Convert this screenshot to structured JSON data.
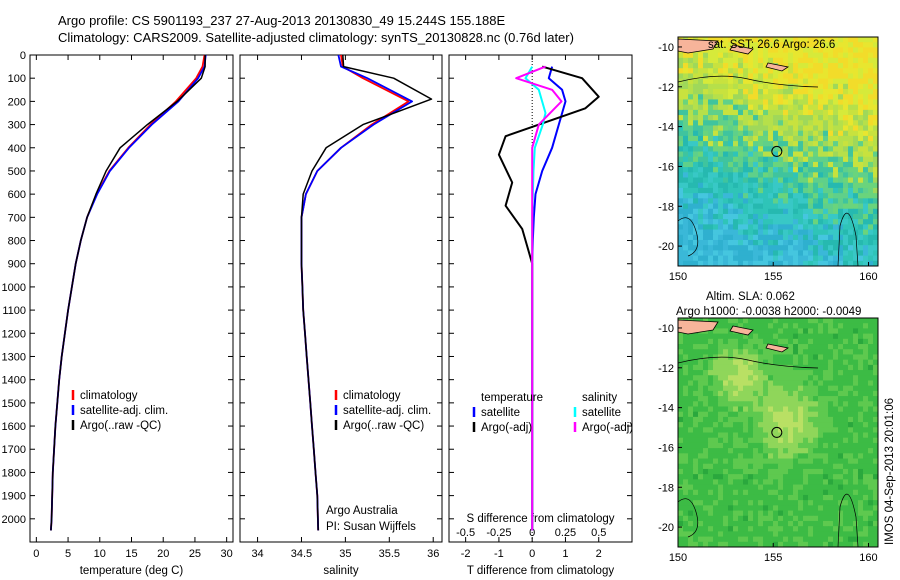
{
  "header": {
    "line1": "Argo profile: CS 5901193_237 27-Aug-2013 20130830_49 15.244S 155.188E",
    "line2": "Climatology: CARS2009. Satellite-adjusted climatology: synTS_20130828.nc (0.76d later)"
  },
  "credit": {
    "org": "Argo Australia",
    "pi": "PI: Susan Wijffels",
    "stamp": "IMOS 04-Sep-2013 20:01:06"
  },
  "map_titles": {
    "sst": "sat. SST: 26.6 Argo: 26.6",
    "sla1": "Altim. SLA: 0.062",
    "sla2": "Argo h1000: -0.0038 h2000: -0.0049"
  },
  "colors": {
    "climatology": "#ff0000",
    "satellite": "#0000ff",
    "argo": "#000000",
    "sal_satellite": "#00ffff",
    "sal_argo": "#ff00ff",
    "land": "#f7b49a"
  },
  "chart_data": [
    {
      "type": "line",
      "panel": "temperature",
      "xlabel": "temperature (deg C)",
      "ylabel": "",
      "xlim": [
        -1,
        31
      ],
      "ylim": [
        2100,
        0
      ],
      "xticks": [
        "0",
        "5",
        "10",
        "15",
        "20",
        "25",
        "30"
      ],
      "yticks": [
        "0",
        "100",
        "200",
        "300",
        "400",
        "500",
        "600",
        "700",
        "800",
        "900",
        "1000",
        "1100",
        "1200",
        "1300",
        "1400",
        "1500",
        "1600",
        "1700",
        "1800",
        "1900",
        "2000"
      ],
      "legend": [
        "climatology",
        "satellite-adj. clim.",
        "Argo(..raw -QC)"
      ],
      "series": [
        {
          "name": "climatology",
          "x": [
            26.5,
            26.2,
            25.2,
            22.0,
            18.0,
            14.5,
            11.5,
            9.5,
            8.0,
            7.0,
            6.2,
            5.6,
            5.0,
            4.5,
            4.0,
            3.6,
            3.3,
            3.0,
            2.8,
            2.6,
            2.5,
            2.4,
            2.3
          ],
          "y": [
            0,
            50,
            100,
            200,
            300,
            400,
            500,
            600,
            700,
            800,
            900,
            1000,
            1100,
            1200,
            1300,
            1400,
            1500,
            1600,
            1700,
            1800,
            1900,
            2000,
            2050
          ]
        },
        {
          "name": "satellite-adj. clim.",
          "x": [
            26.7,
            26.5,
            25.5,
            22.4,
            18.2,
            14.6,
            11.6,
            9.6,
            8.0,
            7.0,
            6.2,
            5.6,
            5.0,
            4.5,
            4.0,
            3.6,
            3.3,
            3.0,
            2.8,
            2.6,
            2.5,
            2.4,
            2.3
          ],
          "y": [
            0,
            50,
            100,
            200,
            300,
            400,
            500,
            600,
            700,
            800,
            900,
            1000,
            1100,
            1200,
            1300,
            1400,
            1500,
            1600,
            1700,
            1800,
            1900,
            2000,
            2050
          ]
        },
        {
          "name": "Argo(..raw -QC)",
          "x": [
            26.6,
            26.6,
            26.0,
            22.2,
            17.5,
            13.2,
            11.0,
            9.4,
            8.0,
            7.0,
            6.2,
            5.6,
            5.0,
            4.5,
            4.0,
            3.6,
            3.3,
            3.0,
            2.8,
            2.6,
            2.5,
            2.4,
            2.3
          ],
          "y": [
            0,
            50,
            100,
            200,
            300,
            400,
            500,
            600,
            700,
            800,
            900,
            1000,
            1100,
            1200,
            1300,
            1400,
            1500,
            1600,
            1700,
            1800,
            1900,
            2000,
            2050
          ]
        }
      ]
    },
    {
      "type": "line",
      "panel": "salinity",
      "xlabel": "salinity",
      "ylabel": "",
      "xlim": [
        33.8,
        36.1
      ],
      "ylim": [
        2100,
        0
      ],
      "xticks": [
        "34",
        "34.5",
        "35",
        "35.5",
        "36"
      ],
      "legend": [
        "climatology",
        "satellite-adj. clim.",
        "Argo(..raw -QC)"
      ],
      "series": [
        {
          "name": "climatology",
          "x": [
            34.95,
            34.97,
            35.2,
            35.72,
            35.3,
            34.95,
            34.68,
            34.55,
            34.5,
            34.5,
            34.5,
            34.51,
            34.52,
            34.54,
            34.56,
            34.58,
            34.6,
            34.62,
            34.64,
            34.66,
            34.68,
            34.69
          ],
          "y": [
            0,
            50,
            100,
            200,
            300,
            400,
            500,
            600,
            700,
            800,
            900,
            1000,
            1100,
            1200,
            1300,
            1400,
            1500,
            1600,
            1700,
            1800,
            1900,
            2050
          ]
        },
        {
          "name": "satellite-adj. clim.",
          "x": [
            34.92,
            34.95,
            35.25,
            35.76,
            35.32,
            34.95,
            34.68,
            34.55,
            34.5,
            34.5,
            34.5,
            34.51,
            34.52,
            34.54,
            34.56,
            34.58,
            34.6,
            34.62,
            34.64,
            34.66,
            34.68,
            34.69
          ],
          "y": [
            0,
            50,
            100,
            200,
            300,
            400,
            500,
            600,
            700,
            800,
            900,
            1000,
            1100,
            1200,
            1300,
            1400,
            1500,
            1600,
            1700,
            1800,
            1900,
            2050
          ]
        },
        {
          "name": "Argo(..raw -QC)",
          "x": [
            34.97,
            34.98,
            35.55,
            35.98,
            35.2,
            34.78,
            34.62,
            34.52,
            34.5,
            34.5,
            34.5,
            34.51,
            34.52,
            34.54,
            34.56,
            34.58,
            34.6,
            34.62,
            34.64,
            34.66,
            34.68,
            34.69
          ],
          "y": [
            0,
            50,
            100,
            190,
            300,
            400,
            500,
            600,
            700,
            800,
            900,
            1000,
            1100,
            1200,
            1300,
            1400,
            1500,
            1600,
            1700,
            1800,
            1900,
            2050
          ]
        }
      ]
    },
    {
      "type": "line",
      "panel": "difference",
      "xlabel": "T difference from climatology",
      "xlabel_top": "S difference from climatology",
      "ylabel": "",
      "xlim": [
        -2.5,
        3
      ],
      "ylim": [
        2100,
        0
      ],
      "xticks": [
        "-2",
        "-1",
        "0",
        "1",
        "2"
      ],
      "xticks_top": [
        "-0.5",
        "-0.25",
        "0",
        "0.25",
        "0.5"
      ],
      "legend": [
        "temperature",
        "satellite",
        "Argo(-adj)",
        "salinity",
        "satellite",
        "Argo(-adj)"
      ],
      "series": [
        {
          "name": "satellite",
          "x": [
            0.6,
            0.5,
            0.9,
            1.0,
            0.8,
            0.6,
            0.3,
            0.1,
            0.05,
            0.02,
            0,
            0,
            0,
            0,
            0,
            0,
            0,
            0
          ],
          "y": [
            50,
            100,
            150,
            200,
            300,
            400,
            500,
            600,
            700,
            800,
            900,
            1000,
            1200,
            1400,
            1600,
            1800,
            2000,
            2050
          ]
        },
        {
          "name": "Argo(-adj)",
          "x": [
            0.3,
            1.5,
            2.0,
            1.6,
            -0.8,
            -1.0,
            -0.6,
            -0.8,
            -0.3,
            -0.1,
            0,
            0,
            0,
            0,
            0,
            0,
            0,
            0
          ],
          "y": [
            50,
            100,
            180,
            230,
            350,
            430,
            550,
            650,
            750,
            850,
            900,
            1000,
            1200,
            1400,
            1600,
            1800,
            2000,
            2050
          ]
        },
        {
          "name": "satellite",
          "x": [
            0,
            -0.05,
            0.05,
            0.1,
            0.08,
            0.02,
            0.01,
            0,
            0,
            0
          ],
          "y": [
            50,
            100,
            150,
            250,
            300,
            400,
            500,
            700,
            1000,
            2050
          ]
        },
        {
          "name": "Argo(-adj)",
          "x": [
            0.1,
            -0.12,
            0.15,
            0.22,
            0.05,
            0,
            0,
            0,
            0
          ],
          "y": [
            50,
            100,
            150,
            200,
            300,
            400,
            600,
            1000,
            2050
          ]
        }
      ]
    },
    {
      "type": "heatmap",
      "panel": "map-sst",
      "xlim": [
        150,
        160.5
      ],
      "ylim": [
        -21,
        -9.5
      ],
      "xticks": [
        "150",
        "155",
        "160"
      ],
      "yticks": [
        "-10",
        "-12",
        "-14",
        "-16",
        "-18",
        "-20"
      ],
      "marker": {
        "lon": 155.188,
        "lat": -15.244
      }
    },
    {
      "type": "heatmap",
      "panel": "map-sla",
      "xlim": [
        150,
        160.5
      ],
      "ylim": [
        -21,
        -9.5
      ],
      "xticks": [
        "150",
        "155",
        "160"
      ],
      "yticks": [
        "-10",
        "-12",
        "-14",
        "-16",
        "-18",
        "-20"
      ],
      "marker": {
        "lon": 155.188,
        "lat": -15.244
      }
    }
  ]
}
